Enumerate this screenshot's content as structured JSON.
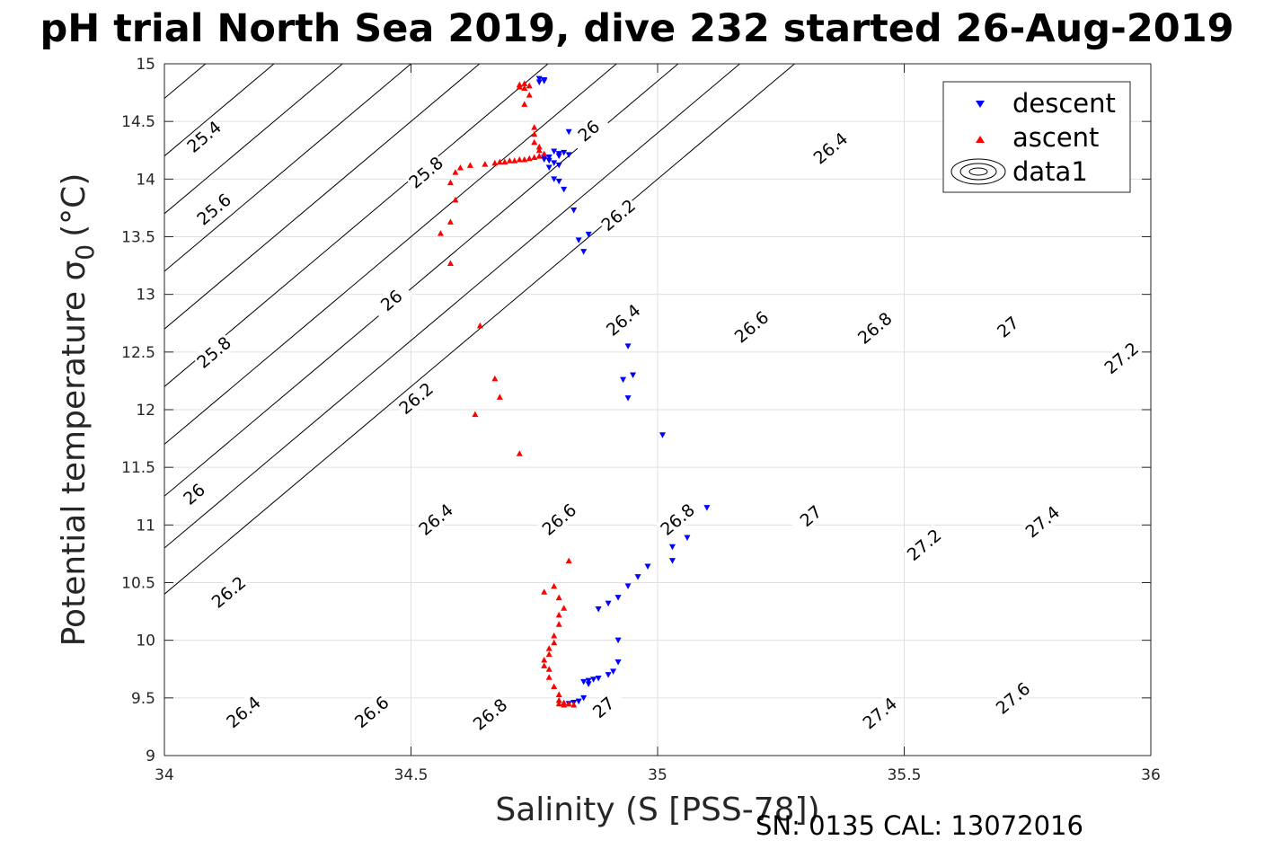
{
  "footer": "SN: 0135  CAL: 13072016",
  "chart_data": {
    "type": "scatter",
    "title": "pH trial North Sea 2019, dive 232 started 26-Aug-2019",
    "xlabel": "Salinity (S [PSS-78])",
    "ylabel": "Potential temperature σ",
    "ylabel_sub": "0",
    "ylabel_unit": "(°C)",
    "xlim": [
      34,
      36
    ],
    "ylim": [
      9,
      15
    ],
    "xticks": [
      "34",
      "34.5",
      "35",
      "35.5",
      "36"
    ],
    "yticks": [
      "9",
      "9.5",
      "10",
      "10.5",
      "11",
      "11.5",
      "12",
      "12.5",
      "13",
      "13.5",
      "14",
      "14.5",
      "15"
    ],
    "grid": true,
    "legend_position": "top-right",
    "legend": [
      "descent",
      "ascent",
      "data1"
    ],
    "colors": {
      "descent": "#0000ff",
      "ascent": "#ff0000",
      "contours": "#000000",
      "grid": "#e0e0e0"
    },
    "series": [
      {
        "name": "descent",
        "marker": "triangle-down",
        "color": "#0000ff",
        "points": [
          [
            34.76,
            14.87
          ],
          [
            34.77,
            14.86
          ],
          [
            34.76,
            14.84
          ],
          [
            34.77,
            14.85
          ],
          [
            34.82,
            14.41
          ],
          [
            34.79,
            14.24
          ],
          [
            34.8,
            14.22
          ],
          [
            34.81,
            14.23
          ],
          [
            34.82,
            14.21
          ],
          [
            34.8,
            14.2
          ],
          [
            34.78,
            14.19
          ],
          [
            34.77,
            14.17
          ],
          [
            34.78,
            14.16
          ],
          [
            34.79,
            14.14
          ],
          [
            34.8,
            14.12
          ],
          [
            34.77,
            14.19
          ],
          [
            34.78,
            14.1
          ],
          [
            34.79,
            14.0
          ],
          [
            34.8,
            13.98
          ],
          [
            34.81,
            13.91
          ],
          [
            34.83,
            13.73
          ],
          [
            34.84,
            13.47
          ],
          [
            34.86,
            13.52
          ],
          [
            34.85,
            13.37
          ],
          [
            34.94,
            12.55
          ],
          [
            34.95,
            12.3
          ],
          [
            34.93,
            12.26
          ],
          [
            34.94,
            12.1
          ],
          [
            35.01,
            11.78
          ],
          [
            35.1,
            11.15
          ],
          [
            35.06,
            10.89
          ],
          [
            35.03,
            10.81
          ],
          [
            35.03,
            10.69
          ],
          [
            34.98,
            10.64
          ],
          [
            34.96,
            10.55
          ],
          [
            34.94,
            10.47
          ],
          [
            34.92,
            10.37
          ],
          [
            34.9,
            10.32
          ],
          [
            34.88,
            10.27
          ],
          [
            34.92,
            10.0
          ],
          [
            34.92,
            9.81
          ],
          [
            34.91,
            9.73
          ],
          [
            34.9,
            9.7
          ],
          [
            34.88,
            9.67
          ],
          [
            34.87,
            9.66
          ],
          [
            34.86,
            9.65
          ],
          [
            34.85,
            9.64
          ],
          [
            34.86,
            9.62
          ],
          [
            34.85,
            9.5
          ],
          [
            34.84,
            9.47
          ],
          [
            34.83,
            9.46
          ],
          [
            34.82,
            9.45
          ]
        ]
      },
      {
        "name": "ascent",
        "marker": "triangle-up",
        "color": "#ff0000",
        "points": [
          [
            34.72,
            14.82
          ],
          [
            34.73,
            14.83
          ],
          [
            34.74,
            14.81
          ],
          [
            34.72,
            14.8
          ],
          [
            34.73,
            14.79
          ],
          [
            34.74,
            14.73
          ],
          [
            34.73,
            14.65
          ],
          [
            34.75,
            14.45
          ],
          [
            34.75,
            14.39
          ],
          [
            34.75,
            14.32
          ],
          [
            34.76,
            14.28
          ],
          [
            34.76,
            14.25
          ],
          [
            34.77,
            14.22
          ],
          [
            34.76,
            14.2
          ],
          [
            34.75,
            14.19
          ],
          [
            34.74,
            14.18
          ],
          [
            34.73,
            14.17
          ],
          [
            34.72,
            14.17
          ],
          [
            34.71,
            14.16
          ],
          [
            34.7,
            14.16
          ],
          [
            34.69,
            14.15
          ],
          [
            34.68,
            14.15
          ],
          [
            34.67,
            14.14
          ],
          [
            34.65,
            14.13
          ],
          [
            34.62,
            14.12
          ],
          [
            34.6,
            14.1
          ],
          [
            34.59,
            14.06
          ],
          [
            34.58,
            13.97
          ],
          [
            34.59,
            13.82
          ],
          [
            34.58,
            13.63
          ],
          [
            34.56,
            13.53
          ],
          [
            34.58,
            13.27
          ],
          [
            34.64,
            12.73
          ],
          [
            34.67,
            12.27
          ],
          [
            34.68,
            12.11
          ],
          [
            34.63,
            11.96
          ],
          [
            34.72,
            11.62
          ],
          [
            34.82,
            10.69
          ],
          [
            34.77,
            10.42
          ],
          [
            34.79,
            10.47
          ],
          [
            34.8,
            10.37
          ],
          [
            34.81,
            10.28
          ],
          [
            34.8,
            10.22
          ],
          [
            34.8,
            10.14
          ],
          [
            34.79,
            10.04
          ],
          [
            34.79,
            9.98
          ],
          [
            34.78,
            9.93
          ],
          [
            34.78,
            9.88
          ],
          [
            34.77,
            9.83
          ],
          [
            34.77,
            9.78
          ],
          [
            34.78,
            9.75
          ],
          [
            34.78,
            9.68
          ],
          [
            34.79,
            9.6
          ],
          [
            34.8,
            9.53
          ],
          [
            34.8,
            9.48
          ],
          [
            34.81,
            9.46
          ],
          [
            34.82,
            9.45
          ],
          [
            34.83,
            9.44
          ],
          [
            34.8,
            9.45
          ],
          [
            34.81,
            9.44
          ]
        ]
      }
    ],
    "contour_labels": [
      {
        "label": "25.4",
        "x": 34.08,
        "y": 14.37
      },
      {
        "label": "25.8",
        "x": 34.53,
        "y": 14.06
      },
      {
        "label": "26",
        "x": 34.86,
        "y": 14.42
      },
      {
        "label": "26.4",
        "x": 35.35,
        "y": 14.27
      },
      {
        "label": "25.6",
        "x": 34.1,
        "y": 13.74
      },
      {
        "label": "26.2",
        "x": 34.92,
        "y": 13.69
      },
      {
        "label": "26",
        "x": 34.46,
        "y": 12.95
      },
      {
        "label": "26.4",
        "x": 34.93,
        "y": 12.78
      },
      {
        "label": "26.6",
        "x": 35.19,
        "y": 12.72
      },
      {
        "label": "26.8",
        "x": 35.44,
        "y": 12.71
      },
      {
        "label": "27",
        "x": 35.71,
        "y": 12.72
      },
      {
        "label": "27.2",
        "x": 35.94,
        "y": 12.45
      },
      {
        "label": "25.8",
        "x": 34.1,
        "y": 12.5
      },
      {
        "label": "26.2",
        "x": 34.51,
        "y": 12.1
      },
      {
        "label": "26",
        "x": 34.06,
        "y": 11.27
      },
      {
        "label": "26.4",
        "x": 34.55,
        "y": 11.05
      },
      {
        "label": "26.6",
        "x": 34.8,
        "y": 11.05
      },
      {
        "label": "26.8",
        "x": 35.04,
        "y": 11.05
      },
      {
        "label": "27",
        "x": 35.31,
        "y": 11.08
      },
      {
        "label": "27.2",
        "x": 35.54,
        "y": 10.83
      },
      {
        "label": "27.4",
        "x": 35.78,
        "y": 11.03
      },
      {
        "label": "26.2",
        "x": 34.13,
        "y": 10.42
      },
      {
        "label": "26.4",
        "x": 34.16,
        "y": 9.38
      },
      {
        "label": "26.6",
        "x": 34.42,
        "y": 9.38
      },
      {
        "label": "26.8",
        "x": 34.66,
        "y": 9.36
      },
      {
        "label": "27",
        "x": 34.89,
        "y": 9.42
      },
      {
        "label": "27.4",
        "x": 35.45,
        "y": 9.37
      },
      {
        "label": "27.6",
        "x": 35.72,
        "y": 9.5
      }
    ]
  }
}
